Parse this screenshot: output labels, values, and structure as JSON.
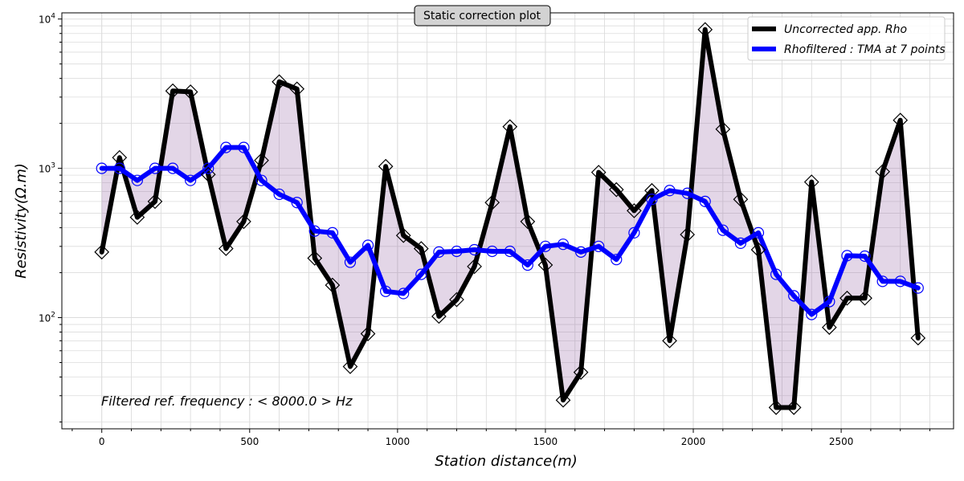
{
  "chart_data": {
    "type": "line",
    "title": "Static correction plot",
    "xlabel": "Station distance(m)",
    "ylabel": "Resistivity(Ω.m)",
    "yscale": "log",
    "xlim": [
      -135,
      2880
    ],
    "ylim": [
      18,
      11000
    ],
    "x_ticks": [
      0,
      500,
      1000,
      1500,
      2000,
      2500
    ],
    "y_ticks": [
      {
        "value": 100,
        "base": "10",
        "exp": "2"
      },
      {
        "value": 1000,
        "base": "10",
        "exp": "3"
      },
      {
        "value": 10000,
        "base": "10",
        "exp": "4"
      }
    ],
    "grid": true,
    "legend_position": "upper right",
    "annotation": "Filtered ref. frequency : < 8000.0 > Hz",
    "colors": {
      "uncorrected": "#000000",
      "filtered": "#0000ff",
      "fill": "#8e5a9e"
    },
    "x": [
      0,
      60,
      120,
      180,
      240,
      300,
      360,
      420,
      480,
      540,
      600,
      660,
      720,
      780,
      840,
      900,
      960,
      1020,
      1080,
      1140,
      1200,
      1260,
      1320,
      1380,
      1440,
      1500,
      1560,
      1620,
      1680,
      1740,
      1800,
      1860,
      1920,
      1980,
      2040,
      2100,
      2160,
      2220,
      2280,
      2340,
      2400,
      2460,
      2520,
      2580,
      2640,
      2700,
      2760
    ],
    "series": [
      {
        "name": "Uncorrected app. Rho",
        "values": [
          275,
          1180,
          470,
          600,
          3300,
          3250,
          910,
          290,
          440,
          1130,
          3800,
          3400,
          250,
          165,
          47,
          78,
          1030,
          355,
          290,
          102,
          132,
          220,
          590,
          1900,
          440,
          225,
          28,
          43,
          940,
          720,
          520,
          710,
          70,
          360,
          8500,
          1830,
          620,
          285,
          25,
          25,
          810,
          86,
          135,
          135,
          950,
          2100,
          73
        ]
      },
      {
        "name": "Rhofiltered : TMA at 7 points",
        "values": [
          1000,
          1000,
          830,
          1000,
          1000,
          830,
          1000,
          1380,
          1380,
          830,
          670,
          590,
          380,
          370,
          235,
          305,
          150,
          145,
          195,
          275,
          278,
          285,
          278,
          278,
          225,
          300,
          310,
          275,
          300,
          245,
          370,
          620,
          710,
          680,
          600,
          385,
          315,
          370,
          195,
          140,
          105,
          128,
          260,
          258,
          175,
          175,
          158
        ]
      }
    ]
  }
}
